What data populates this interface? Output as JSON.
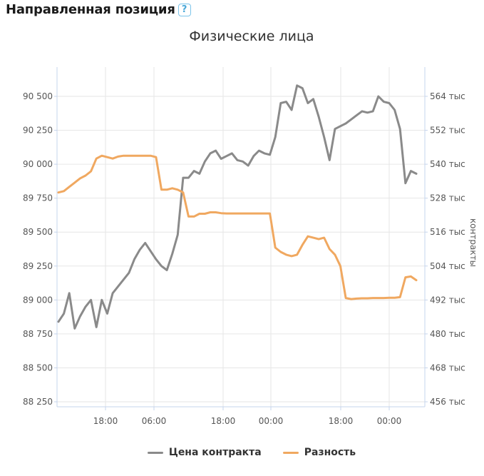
{
  "header": {
    "title": "Направленная позиция",
    "help_glyph": "?"
  },
  "icons": {
    "help": "help-icon"
  },
  "colors": {
    "price": "#8a8a8a",
    "diff": "#f0a860",
    "grid": "#e6e6e6",
    "axis": "#c5d4ec"
  },
  "chart_data": {
    "type": "line",
    "title": "Физические лица",
    "xlabel": "",
    "ylabel_left": "",
    "ylabel_right": "контракты",
    "x_ticks": [
      "18:00",
      "06:00",
      "18:00",
      "00:00",
      "18:00",
      "00:00"
    ],
    "y_left_ticks": [
      "90 500",
      "90 250",
      "90 000",
      "89 750",
      "89 500",
      "89 250",
      "89 000",
      "88 750",
      "88 500",
      "88 250"
    ],
    "y_right_ticks": [
      "564 тыс",
      "552 тыс",
      "540 тыс",
      "528 тыс",
      "516 тыс",
      "504 тыс",
      "492 тыс",
      "480 тыс",
      "468 тыс",
      "456 тыс"
    ],
    "ylim_left": [
      88250,
      90500
    ],
    "ylim_right": [
      456000,
      564000
    ],
    "grid": true,
    "legend_position": "bottom",
    "series": [
      {
        "name": "Цена контракта",
        "axis": "left",
        "values": [
          88840,
          88900,
          89050,
          88790,
          88880,
          88950,
          89000,
          88800,
          89000,
          88900,
          89050,
          89100,
          89150,
          89200,
          89300,
          89370,
          89420,
          89360,
          89300,
          89250,
          89220,
          89340,
          89480,
          89900,
          89900,
          89950,
          89930,
          90020,
          90080,
          90100,
          90040,
          90060,
          90080,
          90030,
          90020,
          89990,
          90060,
          90100,
          90080,
          90070,
          90200,
          90450,
          90460,
          90400,
          90580,
          90560,
          90450,
          90480,
          90350,
          90200,
          90030,
          90260,
          90280,
          90300,
          90330,
          90360,
          90390,
          90380,
          90390,
          90500,
          90460,
          90450,
          90400,
          90260,
          89860,
          89950,
          89930
        ]
      },
      {
        "name": "Разность",
        "axis": "right",
        "values": [
          530000,
          530500,
          532000,
          533500,
          535000,
          536000,
          537500,
          542000,
          543000,
          542500,
          542000,
          542700,
          543000,
          543000,
          543000,
          543000,
          543000,
          543000,
          542500,
          531000,
          531000,
          531500,
          531000,
          530000,
          521500,
          521500,
          522500,
          522500,
          523000,
          523000,
          522700,
          522600,
          522600,
          522600,
          522600,
          522600,
          522600,
          522600,
          522600,
          522600,
          510500,
          509000,
          508000,
          507500,
          508000,
          511500,
          514500,
          514000,
          513500,
          514000,
          510000,
          508000,
          504000,
          492700,
          492300,
          492500,
          492600,
          492600,
          492700,
          492700,
          492700,
          492800,
          492800,
          493000,
          500000,
          500300,
          499000
        ]
      }
    ]
  },
  "legend": {
    "items": [
      {
        "label": "Цена контракта"
      },
      {
        "label": "Разность"
      }
    ]
  }
}
